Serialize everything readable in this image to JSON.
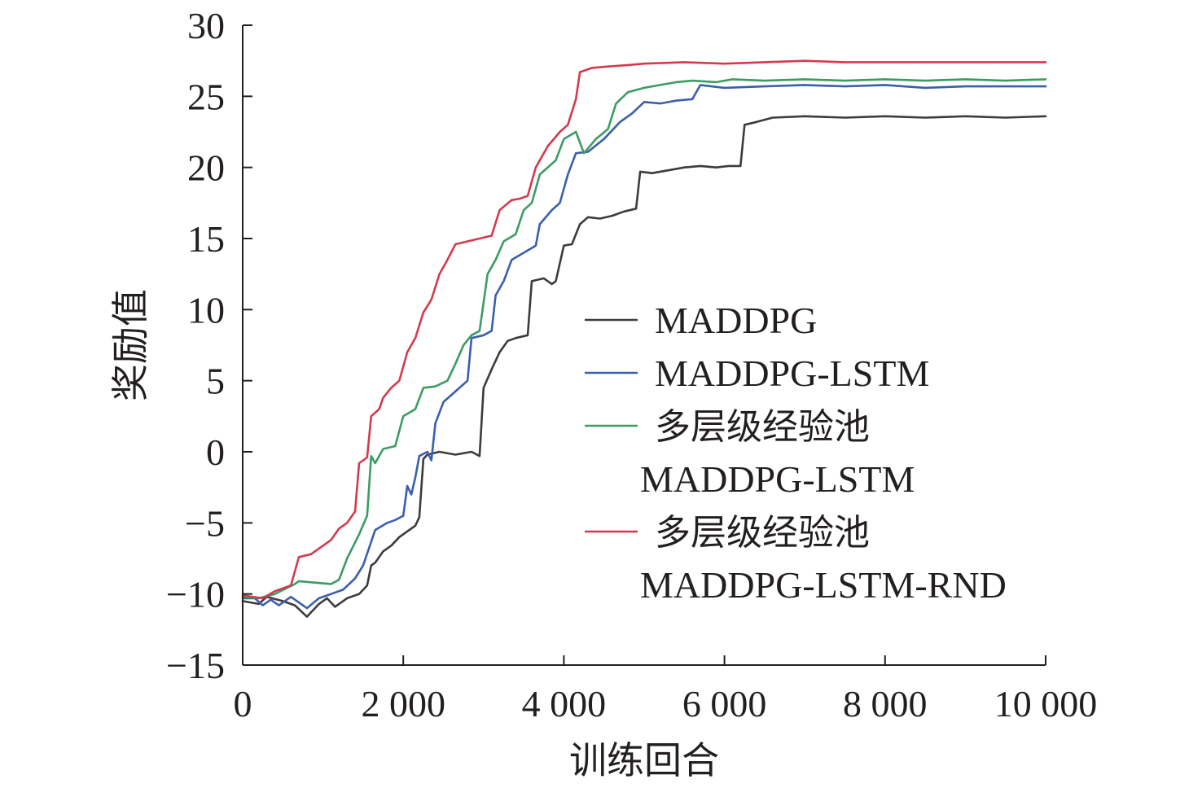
{
  "chart_data": {
    "type": "line",
    "xlabel": "训练回合",
    "ylabel": "奖励值",
    "xlim": [
      0,
      10000
    ],
    "ylim": [
      -15,
      30
    ],
    "x_ticks": [
      0,
      2000,
      4000,
      6000,
      8000,
      10000
    ],
    "x_tick_labels": [
      "0",
      "2 000",
      "4 000",
      "6 000",
      "8 000",
      "10 000"
    ],
    "y_ticks": [
      -15,
      -10,
      -5,
      0,
      5,
      10,
      15,
      20,
      25,
      30
    ],
    "y_tick_labels": [
      "−15",
      "−10",
      "−5",
      "0",
      "5",
      "10",
      "15",
      "20",
      "25",
      "30"
    ],
    "grid": false,
    "legend_position": "center-right",
    "series": [
      {
        "name": "MADDPG",
        "legend_lines": [
          "MADDPG"
        ],
        "color": "#3c3c3f",
        "points": [
          [
            0,
            -10.5
          ],
          [
            200,
            -10.7
          ],
          [
            300,
            -10.2
          ],
          [
            500,
            -10.5
          ],
          [
            650,
            -10.8
          ],
          [
            800,
            -11.6
          ],
          [
            950,
            -10.7
          ],
          [
            1050,
            -10.3
          ],
          [
            1150,
            -10.9
          ],
          [
            1300,
            -10.3
          ],
          [
            1450,
            -10.0
          ],
          [
            1550,
            -9.4
          ],
          [
            1600,
            -8.0
          ],
          [
            1650,
            -7.8
          ],
          [
            1750,
            -7.0
          ],
          [
            1850,
            -6.6
          ],
          [
            1950,
            -6.0
          ],
          [
            2050,
            -5.6
          ],
          [
            2150,
            -5.2
          ],
          [
            2200,
            -4.6
          ],
          [
            2250,
            -0.5
          ],
          [
            2300,
            -0.2
          ],
          [
            2450,
            0.0
          ],
          [
            2650,
            -0.2
          ],
          [
            2850,
            0.0
          ],
          [
            2950,
            -0.3
          ],
          [
            3000,
            4.5
          ],
          [
            3100,
            5.8
          ],
          [
            3200,
            7.0
          ],
          [
            3300,
            7.8
          ],
          [
            3400,
            8.0
          ],
          [
            3550,
            8.2
          ],
          [
            3600,
            12.0
          ],
          [
            3750,
            12.2
          ],
          [
            3850,
            11.8
          ],
          [
            3900,
            12.0
          ],
          [
            4000,
            14.5
          ],
          [
            4100,
            14.6
          ],
          [
            4200,
            16.0
          ],
          [
            4300,
            16.5
          ],
          [
            4450,
            16.4
          ],
          [
            4600,
            16.6
          ],
          [
            4750,
            16.9
          ],
          [
            4900,
            17.1
          ],
          [
            4950,
            19.7
          ],
          [
            5100,
            19.6
          ],
          [
            5300,
            19.8
          ],
          [
            5500,
            20.0
          ],
          [
            5700,
            20.1
          ],
          [
            5900,
            20.0
          ],
          [
            6050,
            20.1
          ],
          [
            6200,
            20.1
          ],
          [
            6250,
            23.0
          ],
          [
            6400,
            23.2
          ],
          [
            6600,
            23.5
          ],
          [
            7000,
            23.6
          ],
          [
            7500,
            23.5
          ],
          [
            8000,
            23.6
          ],
          [
            8500,
            23.5
          ],
          [
            9000,
            23.6
          ],
          [
            9500,
            23.5
          ],
          [
            10000,
            23.6
          ]
        ]
      },
      {
        "name": "MADDPG-LSTM",
        "legend_lines": [
          "MADDPG-LSTM"
        ],
        "color": "#3a5fad",
        "points": [
          [
            0,
            -10.3
          ],
          [
            150,
            -10.3
          ],
          [
            250,
            -10.8
          ],
          [
            350,
            -10.4
          ],
          [
            450,
            -10.8
          ],
          [
            600,
            -10.2
          ],
          [
            700,
            -10.6
          ],
          [
            800,
            -11.0
          ],
          [
            950,
            -10.3
          ],
          [
            1100,
            -10.0
          ],
          [
            1250,
            -9.7
          ],
          [
            1400,
            -8.9
          ],
          [
            1500,
            -8.0
          ],
          [
            1650,
            -5.5
          ],
          [
            1800,
            -5.0
          ],
          [
            1900,
            -4.8
          ],
          [
            2000,
            -4.5
          ],
          [
            2050,
            -2.4
          ],
          [
            2100,
            -3.0
          ],
          [
            2150,
            -1.8
          ],
          [
            2200,
            -0.3
          ],
          [
            2300,
            0.0
          ],
          [
            2350,
            -0.6
          ],
          [
            2400,
            2.0
          ],
          [
            2500,
            3.5
          ],
          [
            2600,
            4.0
          ],
          [
            2700,
            4.5
          ],
          [
            2800,
            5.0
          ],
          [
            2850,
            8.0
          ],
          [
            3000,
            8.2
          ],
          [
            3100,
            8.5
          ],
          [
            3150,
            11.0
          ],
          [
            3250,
            12.0
          ],
          [
            3350,
            13.5
          ],
          [
            3500,
            14.0
          ],
          [
            3650,
            14.5
          ],
          [
            3700,
            16.0
          ],
          [
            3850,
            17.0
          ],
          [
            3950,
            17.5
          ],
          [
            4050,
            19.5
          ],
          [
            4150,
            21.0
          ],
          [
            4300,
            21.1
          ],
          [
            4500,
            22.0
          ],
          [
            4700,
            23.2
          ],
          [
            4850,
            23.8
          ],
          [
            5000,
            24.6
          ],
          [
            5200,
            24.5
          ],
          [
            5400,
            24.7
          ],
          [
            5600,
            24.8
          ],
          [
            5700,
            25.8
          ],
          [
            6000,
            25.6
          ],
          [
            6500,
            25.7
          ],
          [
            7000,
            25.8
          ],
          [
            7500,
            25.7
          ],
          [
            8000,
            25.8
          ],
          [
            8500,
            25.6
          ],
          [
            9000,
            25.7
          ],
          [
            9500,
            25.7
          ],
          [
            10000,
            25.7
          ]
        ]
      },
      {
        "name": "多层级经验池 MADDPG-LSTM",
        "legend_lines": [
          "多层级经验池",
          "MADDPG-LSTM"
        ],
        "color": "#3b9c63",
        "points": [
          [
            0,
            -10.2
          ],
          [
            200,
            -10.3
          ],
          [
            400,
            -10.0
          ],
          [
            650,
            -9.3
          ],
          [
            700,
            -9.1
          ],
          [
            900,
            -9.2
          ],
          [
            1100,
            -9.3
          ],
          [
            1200,
            -9.0
          ],
          [
            1300,
            -7.5
          ],
          [
            1450,
            -5.8
          ],
          [
            1550,
            -4.5
          ],
          [
            1600,
            -0.3
          ],
          [
            1650,
            -0.8
          ],
          [
            1750,
            0.2
          ],
          [
            1900,
            0.4
          ],
          [
            2000,
            2.5
          ],
          [
            2150,
            3.0
          ],
          [
            2250,
            4.5
          ],
          [
            2400,
            4.6
          ],
          [
            2550,
            5.0
          ],
          [
            2650,
            6.2
          ],
          [
            2750,
            7.5
          ],
          [
            2850,
            8.2
          ],
          [
            2950,
            8.5
          ],
          [
            3050,
            12.5
          ],
          [
            3150,
            13.5
          ],
          [
            3250,
            14.8
          ],
          [
            3400,
            15.3
          ],
          [
            3500,
            17.0
          ],
          [
            3600,
            17.5
          ],
          [
            3700,
            19.5
          ],
          [
            3900,
            20.5
          ],
          [
            4000,
            22.0
          ],
          [
            4150,
            22.5
          ],
          [
            4250,
            21.0
          ],
          [
            4400,
            22.0
          ],
          [
            4550,
            22.7
          ],
          [
            4650,
            24.5
          ],
          [
            4800,
            25.3
          ],
          [
            5000,
            25.6
          ],
          [
            5200,
            25.8
          ],
          [
            5400,
            26.0
          ],
          [
            5600,
            26.1
          ],
          [
            5900,
            26.0
          ],
          [
            6100,
            26.2
          ],
          [
            6500,
            26.1
          ],
          [
            7000,
            26.2
          ],
          [
            7500,
            26.1
          ],
          [
            8000,
            26.2
          ],
          [
            8500,
            26.1
          ],
          [
            9000,
            26.2
          ],
          [
            9500,
            26.1
          ],
          [
            10000,
            26.2
          ]
        ]
      },
      {
        "name": "多层级经验池 MADDPG-LSTM-RND",
        "legend_lines": [
          "多层级经验池",
          "MADDPG-LSTM-RND"
        ],
        "color": "#d43a4d",
        "points": [
          [
            0,
            -10.1
          ],
          [
            250,
            -10.3
          ],
          [
            400,
            -9.8
          ],
          [
            600,
            -9.4
          ],
          [
            700,
            -7.4
          ],
          [
            850,
            -7.2
          ],
          [
            950,
            -6.8
          ],
          [
            1100,
            -6.2
          ],
          [
            1200,
            -5.4
          ],
          [
            1300,
            -5.0
          ],
          [
            1400,
            -4.2
          ],
          [
            1450,
            -0.8
          ],
          [
            1550,
            -0.4
          ],
          [
            1600,
            2.5
          ],
          [
            1700,
            3.0
          ],
          [
            1750,
            3.8
          ],
          [
            1850,
            4.5
          ],
          [
            1950,
            5.0
          ],
          [
            2050,
            7.0
          ],
          [
            2150,
            8.0
          ],
          [
            2250,
            9.8
          ],
          [
            2350,
            10.7
          ],
          [
            2450,
            12.5
          ],
          [
            2550,
            13.5
          ],
          [
            2650,
            14.6
          ],
          [
            2800,
            14.8
          ],
          [
            2950,
            15.0
          ],
          [
            3100,
            15.2
          ],
          [
            3200,
            17.0
          ],
          [
            3350,
            17.7
          ],
          [
            3450,
            17.8
          ],
          [
            3550,
            18.0
          ],
          [
            3650,
            20.0
          ],
          [
            3800,
            21.5
          ],
          [
            3950,
            22.5
          ],
          [
            4050,
            23.0
          ],
          [
            4150,
            24.8
          ],
          [
            4200,
            26.7
          ],
          [
            4350,
            27.0
          ],
          [
            4550,
            27.1
          ],
          [
            4800,
            27.2
          ],
          [
            5000,
            27.3
          ],
          [
            5500,
            27.4
          ],
          [
            6000,
            27.3
          ],
          [
            6500,
            27.4
          ],
          [
            7000,
            27.5
          ],
          [
            7500,
            27.4
          ],
          [
            8000,
            27.4
          ],
          [
            8500,
            27.4
          ],
          [
            9000,
            27.4
          ],
          [
            9500,
            27.4
          ],
          [
            10000,
            27.4
          ]
        ]
      }
    ]
  }
}
